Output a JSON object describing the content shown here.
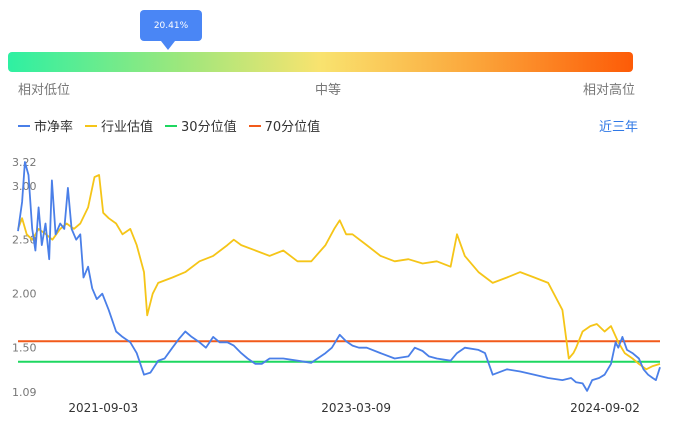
{
  "percentile_tooltip": "20.41%",
  "position_bar": {
    "left_label": "相对低位",
    "middle_label": "中等",
    "right_label": "相对高位",
    "colors": [
      "#2ef0a2",
      "#9ee77c",
      "#f9e36f",
      "#fba53a",
      "#fd5b07"
    ]
  },
  "range_selector": "近三年",
  "chart_data": {
    "type": "line",
    "x_ticks": [
      "2021-09-03",
      "2023-03-09",
      "2024-09-02"
    ],
    "y_ticks": [
      "3.22",
      "3.00",
      "2.50",
      "2.00",
      "1.50",
      "1.09"
    ],
    "ylim": [
      1.09,
      3.22
    ],
    "xlim": [
      "2021-03-01",
      "2024-12-31"
    ],
    "series": [
      {
        "name": "市净率",
        "color": "#4a7fe8",
        "points": [
          [
            "2021-03-01",
            2.58
          ],
          [
            "2021-03-10",
            2.85
          ],
          [
            "2021-03-16",
            3.22
          ],
          [
            "2021-03-24",
            3.1
          ],
          [
            "2021-04-01",
            2.6
          ],
          [
            "2021-04-08",
            2.4
          ],
          [
            "2021-04-15",
            2.8
          ],
          [
            "2021-04-22",
            2.45
          ],
          [
            "2021-04-30",
            2.65
          ],
          [
            "2021-05-08",
            2.32
          ],
          [
            "2021-05-14",
            3.05
          ],
          [
            "2021-05-22",
            2.55
          ],
          [
            "2021-06-01",
            2.65
          ],
          [
            "2021-06-10",
            2.6
          ],
          [
            "2021-06-18",
            2.98
          ],
          [
            "2021-06-26",
            2.6
          ],
          [
            "2021-07-06",
            2.5
          ],
          [
            "2021-07-15",
            2.55
          ],
          [
            "2021-07-22",
            2.15
          ],
          [
            "2021-08-01",
            2.25
          ],
          [
            "2021-08-10",
            2.05
          ],
          [
            "2021-08-20",
            1.95
          ],
          [
            "2021-09-01",
            2.0
          ],
          [
            "2021-09-15",
            1.85
          ],
          [
            "2021-10-01",
            1.65
          ],
          [
            "2021-10-15",
            1.6
          ],
          [
            "2021-11-01",
            1.55
          ],
          [
            "2021-11-15",
            1.45
          ],
          [
            "2021-12-01",
            1.25
          ],
          [
            "2021-12-15",
            1.27
          ],
          [
            "2022-01-01",
            1.38
          ],
          [
            "2022-01-15",
            1.4
          ],
          [
            "2022-02-01",
            1.5
          ],
          [
            "2022-02-15",
            1.58
          ],
          [
            "2022-03-01",
            1.65
          ],
          [
            "2022-03-15",
            1.6
          ],
          [
            "2022-04-01",
            1.55
          ],
          [
            "2022-04-15",
            1.5
          ],
          [
            "2022-05-01",
            1.6
          ],
          [
            "2022-05-15",
            1.55
          ],
          [
            "2022-06-01",
            1.55
          ],
          [
            "2022-06-15",
            1.52
          ],
          [
            "2022-07-01",
            1.45
          ],
          [
            "2022-07-15",
            1.4
          ],
          [
            "2022-08-01",
            1.35
          ],
          [
            "2022-08-15",
            1.35
          ],
          [
            "2022-09-01",
            1.4
          ],
          [
            "2022-10-01",
            1.4
          ],
          [
            "2022-11-01",
            1.38
          ],
          [
            "2022-12-01",
            1.36
          ],
          [
            "2023-01-01",
            1.45
          ],
          [
            "2023-01-15",
            1.5
          ],
          [
            "2023-02-01",
            1.62
          ],
          [
            "2023-02-15",
            1.56
          ],
          [
            "2023-03-01",
            1.52
          ],
          [
            "2023-03-15",
            1.5
          ],
          [
            "2023-04-01",
            1.5
          ],
          [
            "2023-05-01",
            1.45
          ],
          [
            "2023-06-01",
            1.4
          ],
          [
            "2023-07-01",
            1.42
          ],
          [
            "2023-07-15",
            1.5
          ],
          [
            "2023-08-01",
            1.47
          ],
          [
            "2023-08-15",
            1.42
          ],
          [
            "2023-09-01",
            1.4
          ],
          [
            "2023-10-01",
            1.38
          ],
          [
            "2023-10-15",
            1.45
          ],
          [
            "2023-11-01",
            1.5
          ],
          [
            "2023-12-01",
            1.48
          ],
          [
            "2023-12-15",
            1.45
          ],
          [
            "2024-01-01",
            1.25
          ],
          [
            "2024-02-01",
            1.3
          ],
          [
            "2024-03-01",
            1.28
          ],
          [
            "2024-04-01",
            1.25
          ],
          [
            "2024-05-01",
            1.22
          ],
          [
            "2024-06-01",
            1.2
          ],
          [
            "2024-06-20",
            1.22
          ],
          [
            "2024-07-01",
            1.18
          ],
          [
            "2024-07-15",
            1.17
          ],
          [
            "2024-07-25",
            1.1
          ],
          [
            "2024-08-05",
            1.2
          ],
          [
            "2024-08-20",
            1.22
          ],
          [
            "2024-09-01",
            1.25
          ],
          [
            "2024-09-15",
            1.35
          ],
          [
            "2024-09-25",
            1.55
          ],
          [
            "2024-10-01",
            1.5
          ],
          [
            "2024-10-10",
            1.6
          ],
          [
            "2024-10-20",
            1.48
          ],
          [
            "2024-11-01",
            1.45
          ],
          [
            "2024-11-15",
            1.4
          ],
          [
            "2024-11-25",
            1.3
          ],
          [
            "2024-12-05",
            1.25
          ],
          [
            "2024-12-15",
            1.22
          ],
          [
            "2024-12-22",
            1.2
          ],
          [
            "2024-12-31",
            1.32
          ]
        ]
      },
      {
        "name": "行业估值",
        "color": "#f5c518",
        "points": [
          [
            "2021-03-01",
            2.6
          ],
          [
            "2021-03-10",
            2.7
          ],
          [
            "2021-03-20",
            2.55
          ],
          [
            "2021-04-01",
            2.5
          ],
          [
            "2021-04-15",
            2.6
          ],
          [
            "2021-05-01",
            2.55
          ],
          [
            "2021-05-15",
            2.5
          ],
          [
            "2021-06-01",
            2.6
          ],
          [
            "2021-06-15",
            2.65
          ],
          [
            "2021-07-01",
            2.6
          ],
          [
            "2021-07-15",
            2.65
          ],
          [
            "2021-08-01",
            2.8
          ],
          [
            "2021-08-15",
            3.08
          ],
          [
            "2021-08-25",
            3.1
          ],
          [
            "2021-09-03",
            2.75
          ],
          [
            "2021-09-15",
            2.7
          ],
          [
            "2021-10-01",
            2.65
          ],
          [
            "2021-10-15",
            2.55
          ],
          [
            "2021-11-01",
            2.6
          ],
          [
            "2021-11-15",
            2.45
          ],
          [
            "2021-12-01",
            2.2
          ],
          [
            "2021-12-08",
            1.8
          ],
          [
            "2021-12-20",
            2.0
          ],
          [
            "2022-01-01",
            2.1
          ],
          [
            "2022-02-01",
            2.15
          ],
          [
            "2022-03-01",
            2.2
          ],
          [
            "2022-04-01",
            2.3
          ],
          [
            "2022-05-01",
            2.35
          ],
          [
            "2022-06-01",
            2.45
          ],
          [
            "2022-06-15",
            2.5
          ],
          [
            "2022-07-01",
            2.45
          ],
          [
            "2022-08-01",
            2.4
          ],
          [
            "2022-09-01",
            2.35
          ],
          [
            "2022-10-01",
            2.4
          ],
          [
            "2022-11-01",
            2.3
          ],
          [
            "2022-12-01",
            2.3
          ],
          [
            "2023-01-01",
            2.45
          ],
          [
            "2023-01-20",
            2.6
          ],
          [
            "2023-02-01",
            2.68
          ],
          [
            "2023-02-15",
            2.55
          ],
          [
            "2023-03-01",
            2.55
          ],
          [
            "2023-04-01",
            2.45
          ],
          [
            "2023-05-01",
            2.35
          ],
          [
            "2023-06-01",
            2.3
          ],
          [
            "2023-07-01",
            2.32
          ],
          [
            "2023-08-01",
            2.28
          ],
          [
            "2023-09-01",
            2.3
          ],
          [
            "2023-10-01",
            2.25
          ],
          [
            "2023-10-15",
            2.55
          ],
          [
            "2023-11-01",
            2.35
          ],
          [
            "2023-12-01",
            2.2
          ],
          [
            "2024-01-01",
            2.1
          ],
          [
            "2024-02-01",
            2.15
          ],
          [
            "2024-03-01",
            2.2
          ],
          [
            "2024-04-01",
            2.15
          ],
          [
            "2024-05-01",
            2.1
          ],
          [
            "2024-06-01",
            1.85
          ],
          [
            "2024-06-15",
            1.4
          ],
          [
            "2024-06-25",
            1.45
          ],
          [
            "2024-07-01",
            1.5
          ],
          [
            "2024-07-15",
            1.65
          ],
          [
            "2024-08-01",
            1.7
          ],
          [
            "2024-08-15",
            1.72
          ],
          [
            "2024-09-01",
            1.65
          ],
          [
            "2024-09-15",
            1.7
          ],
          [
            "2024-10-01",
            1.55
          ],
          [
            "2024-10-15",
            1.45
          ],
          [
            "2024-11-01",
            1.4
          ],
          [
            "2024-11-15",
            1.35
          ],
          [
            "2024-12-01",
            1.3
          ],
          [
            "2024-12-15",
            1.33
          ],
          [
            "2024-12-31",
            1.35
          ]
        ]
      },
      {
        "name": "30分位值",
        "color": "#1ed760",
        "constant": 1.37
      },
      {
        "name": "70分位值",
        "color": "#f25a1a",
        "constant": 1.56
      }
    ]
  }
}
